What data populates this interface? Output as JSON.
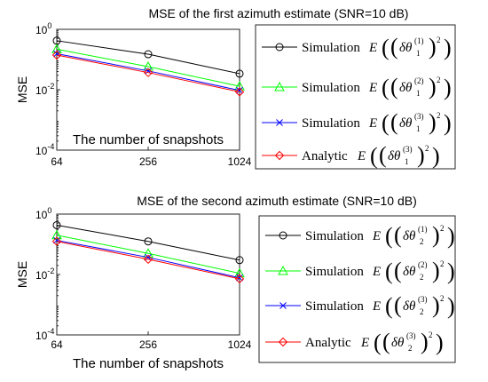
{
  "chart_data": [
    {
      "type": "line",
      "title": "MSE of the first azimuth estimate (SNR=10 dB)",
      "xlabel": "The number of snapshots",
      "ylabel": "MSE",
      "x": [
        64,
        256,
        1024
      ],
      "xscale": "log",
      "yscale": "log",
      "ylim_exp": [
        -4,
        0
      ],
      "grid": false,
      "legend_position": "right",
      "series": [
        {
          "name": "Simulation",
          "term": "1",
          "values": [
            0.42,
            0.15,
            0.034
          ],
          "color": "#000000",
          "marker": "circle"
        },
        {
          "name": "Simulation",
          "term": "2",
          "values": [
            0.22,
            0.058,
            0.013
          ],
          "color": "#00ff00",
          "marker": "triangle"
        },
        {
          "name": "Simulation",
          "term": "3",
          "values": [
            0.155,
            0.042,
            0.0095
          ],
          "color": "#0000ff",
          "marker": "x"
        },
        {
          "name": "Analytic",
          "term": "3",
          "values": [
            0.14,
            0.037,
            0.0085
          ],
          "color": "#ff0000",
          "marker": "diamond"
        }
      ],
      "legend_index": "1"
    },
    {
      "type": "line",
      "title": "MSE of the second azimuth estimate (SNR=10 dB)",
      "xlabel": "The number of snapshots",
      "ylabel": "MSE",
      "x": [
        64,
        256,
        1024
      ],
      "xscale": "log",
      "yscale": "log",
      "ylim_exp": [
        -4,
        0
      ],
      "grid": false,
      "legend_position": "right",
      "series": [
        {
          "name": "Simulation",
          "term": "1",
          "values": [
            0.43,
            0.125,
            0.03
          ],
          "color": "#000000",
          "marker": "circle"
        },
        {
          "name": "Simulation",
          "term": "2",
          "values": [
            0.2,
            0.05,
            0.011
          ],
          "color": "#00ff00",
          "marker": "triangle"
        },
        {
          "name": "Simulation",
          "term": "3",
          "values": [
            0.135,
            0.037,
            0.0078
          ],
          "color": "#0000ff",
          "marker": "x"
        },
        {
          "name": "Analytic",
          "term": "3",
          "values": [
            0.125,
            0.032,
            0.0072
          ],
          "color": "#ff0000",
          "marker": "diamond"
        }
      ],
      "legend_index": "2"
    }
  ],
  "legend_symbol": "E",
  "legend_var": "δθ"
}
